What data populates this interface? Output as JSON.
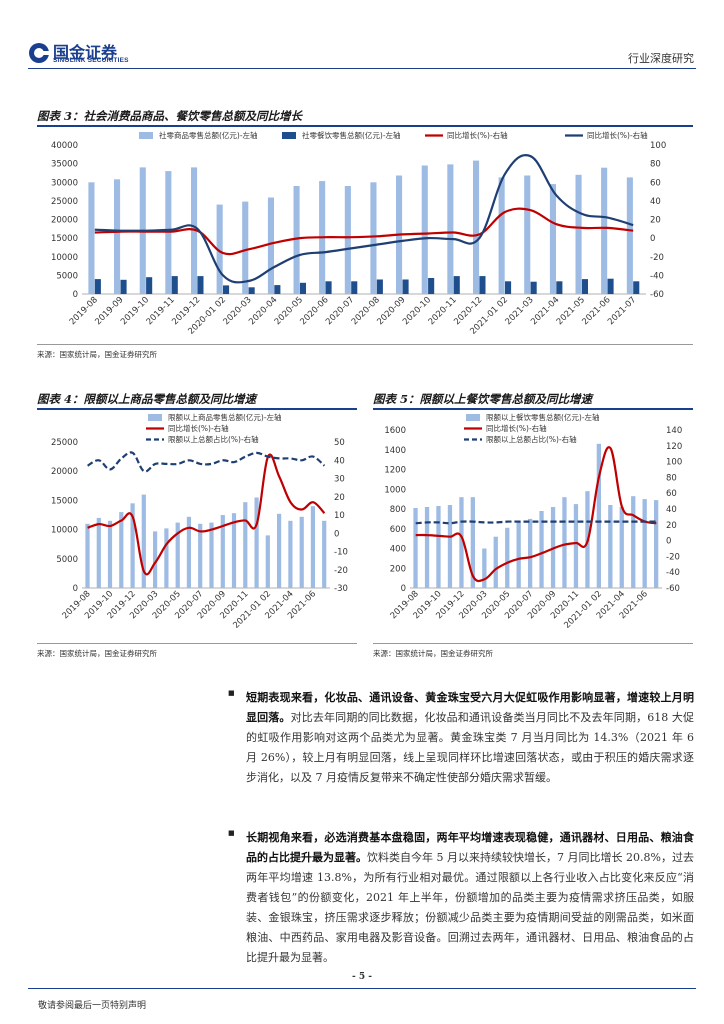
{
  "header": {
    "logo_cn": "国金证券",
    "logo_en": "SINOLINK SECURITIES",
    "doc_type": "行业深度研究"
  },
  "colors": {
    "bar_light": "#9dbbe3",
    "bar_dark": "#1f4e8c",
    "line_red": "#c00000",
    "line_navy": "#1f3f73",
    "brand": "#1a3f8f"
  },
  "chart_data": [
    {
      "id": "fig3",
      "type": "bar",
      "title": "图表 3：社会消费品商品、餐饮零售总额及同比增长",
      "source": "来源：国家统计局，国金证券研究所",
      "categories": [
        "2019-08",
        "2019-09",
        "2019-10",
        "2019-11",
        "2019-12",
        "2020-01 02",
        "2020-03",
        "2020-04",
        "2020-05",
        "2020-06",
        "2020-07",
        "2020-08",
        "2020-09",
        "2020-10",
        "2020-11",
        "2020-12",
        "2021-01 02",
        "2021-03",
        "2021-04",
        "2021-05",
        "2021-06",
        "2021-07"
      ],
      "ylim_left": [
        0,
        40000
      ],
      "yticks_left": [
        "0",
        "5000",
        "10000",
        "15000",
        "20000",
        "25000",
        "30000",
        "35000",
        "40000"
      ],
      "ylim_right": [
        -60,
        100
      ],
      "yticks_right": [
        "-60",
        "-40",
        "-20",
        "0",
        "20",
        "40",
        "60",
        "80",
        "100"
      ],
      "series": [
        {
          "name": "社零商品零售总额(亿元)-左轴",
          "kind": "bar",
          "axis": "left",
          "color": "#9dbbe3",
          "values": [
            30000,
            30800,
            34000,
            33000,
            34000,
            24000,
            24800,
            25900,
            29000,
            30300,
            29000,
            30000,
            31800,
            34500,
            34800,
            35800,
            31300,
            31800,
            29500,
            32000,
            33900,
            31300
          ]
        },
        {
          "name": "社零餐饮零售总额(亿元)-左轴",
          "kind": "bar",
          "axis": "left",
          "color": "#1f4e8c",
          "values": [
            4000,
            3800,
            4500,
            4800,
            4800,
            2300,
            1800,
            2400,
            3000,
            3400,
            3400,
            3900,
            3900,
            4300,
            4800,
            4800,
            3400,
            3300,
            3400,
            4000,
            4100,
            3400
          ]
        },
        {
          "name": "同比增长(%)-右轴",
          "kind": "line",
          "axis": "right",
          "color": "#c00000",
          "values": [
            6,
            7,
            7,
            7,
            8,
            -16,
            -12,
            -5,
            0,
            1,
            1,
            2,
            4,
            5,
            6,
            4,
            28,
            30,
            15,
            11,
            11,
            8
          ]
        },
        {
          "name": "同比增长(%)-右轴",
          "kind": "line",
          "axis": "right",
          "color": "#1f3f73",
          "values": [
            9,
            8,
            8,
            9,
            10,
            -40,
            -46,
            -31,
            -18,
            -15,
            -11,
            -7,
            -3,
            0,
            -1,
            0,
            69,
            88,
            46,
            26,
            22,
            14
          ]
        }
      ]
    },
    {
      "id": "fig4",
      "type": "bar",
      "title": "图表 4：限额以上商品零售总额及同比增速",
      "source": "来源：国家统计局，国金证券研究所",
      "categories": [
        "2019-08",
        "2019-09",
        "2019-10",
        "2019-11",
        "2019-12",
        "2020-01 02",
        "2020-03",
        "2020-04",
        "2020-05",
        "2020-06",
        "2020-07",
        "2020-08",
        "2020-09",
        "2020-10",
        "2020-11",
        "2020-12",
        "2021-01 02",
        "2021-03",
        "2021-04",
        "2021-05",
        "2021-06",
        "2021-07"
      ],
      "xtick_labels": [
        "2019-08",
        "2019-10",
        "2019-12",
        "2020-03",
        "2020-05",
        "2020-07",
        "2020-09",
        "2020-11",
        "2021-01 02",
        "2021-04",
        "2021-06"
      ],
      "ylim_left": [
        0,
        25000
      ],
      "yticks_left": [
        "0",
        "5000",
        "10000",
        "15000",
        "20000",
        "25000"
      ],
      "ylim_right": [
        -30,
        50
      ],
      "yticks_right": [
        "-30",
        "-20",
        "-10",
        "0",
        "10",
        "20",
        "30",
        "40",
        "50"
      ],
      "series": [
        {
          "name": "限额以上商品零售总额(亿元)-左轴",
          "kind": "bar",
          "axis": "left",
          "color": "#9dbbe3",
          "values": [
            11000,
            12000,
            11500,
            13000,
            14500,
            16000,
            9700,
            10200,
            11200,
            12200,
            11000,
            11200,
            12500,
            12800,
            14700,
            15500,
            9000,
            12700,
            11500,
            12200,
            14000,
            11500
          ]
        },
        {
          "name": "同比增长(%)-右轴",
          "kind": "line",
          "axis": "right",
          "color": "#c00000",
          "values": [
            3,
            5,
            4,
            7,
            9,
            -21,
            -16,
            -6,
            0,
            3,
            1,
            2,
            4,
            6,
            7,
            5,
            42,
            31,
            17,
            13,
            17,
            11
          ]
        },
        {
          "name": "限额以上总额占比(%)-右轴",
          "kind": "line",
          "axis": "right",
          "color": "#1f3f73",
          "dash": true,
          "values": [
            37,
            40,
            35,
            41,
            44,
            34,
            38,
            38,
            38,
            40,
            38,
            38,
            40,
            39,
            42,
            44,
            42,
            41,
            41,
            40,
            42,
            37
          ]
        }
      ]
    },
    {
      "id": "fig5",
      "type": "bar",
      "title": "图表 5：限额以上餐饮零售总额及同比增速",
      "source": "来源：国家统计局，国金证券研究所",
      "categories": [
        "2019-08",
        "2019-09",
        "2019-10",
        "2019-11",
        "2019-12",
        "2020-01 02",
        "2020-03",
        "2020-04",
        "2020-05",
        "2020-06",
        "2020-07",
        "2020-08",
        "2020-09",
        "2020-10",
        "2020-11",
        "2020-12",
        "2021-01 02",
        "2021-03",
        "2021-04",
        "2021-05",
        "2021-06",
        "2021-07"
      ],
      "xtick_labels": [
        "2019-08",
        "2019-10",
        "2019-12",
        "2020-03",
        "2020-05",
        "2020-07",
        "2020-09",
        "2020-11",
        "2021-01 02",
        "2021-04",
        "2021-06"
      ],
      "ylim_left": [
        0,
        1600
      ],
      "yticks_left": [
        "0",
        "200",
        "400",
        "600",
        "800",
        "1000",
        "1200",
        "1400",
        "1600"
      ],
      "ylim_right": [
        -60,
        140
      ],
      "yticks_right": [
        "-60",
        "-40",
        "-20",
        "0",
        "20",
        "40",
        "60",
        "80",
        "100",
        "120",
        "140"
      ],
      "series": [
        {
          "name": "限额以上餐饮零售总额(亿元)-左轴",
          "kind": "bar",
          "axis": "left",
          "color": "#9dbbe3",
          "values": [
            810,
            820,
            830,
            840,
            920,
            920,
            400,
            520,
            610,
            680,
            700,
            780,
            820,
            920,
            850,
            980,
            1460,
            840,
            820,
            930,
            900,
            890
          ]
        },
        {
          "name": "同比增长(%)-右轴",
          "kind": "line",
          "axis": "right",
          "color": "#c00000",
          "values": [
            7,
            7,
            6,
            5,
            5,
            -45,
            -49,
            -36,
            -28,
            -23,
            -21,
            -16,
            -10,
            -5,
            -3,
            -1,
            81,
            117,
            43,
            32,
            24,
            22
          ]
        },
        {
          "name": "限额以上总额占比(%)-右轴",
          "kind": "line",
          "axis": "right",
          "color": "#1f3f73",
          "dash": true,
          "values": [
            22,
            23,
            23,
            22,
            24,
            24,
            23,
            23,
            24,
            24,
            24,
            24,
            24,
            24,
            24,
            24,
            24,
            24,
            24,
            24,
            24,
            24
          ]
        }
      ]
    }
  ],
  "body": {
    "p1_lead": "短期表现来看，化妆品、通讯设备、黄金珠宝受六月大促虹吸作用影响显著，增速较上月明显回落。",
    "p1_lines": [
      "对比去年同期的同比数据，化妆品和通讯设备",
      "类当月同比不及去年同期，618 大促的虹吸作用影响对这两个品类尤为显",
      "著。黄金珠宝类 7 月当月同比为 14.3%（2021 年 6 月 26%），较上月有明",
      "显回落，线上呈现同样环比增速回落状态，或由于积压的婚庆需求逐步消",
      "化，以及 7 月疫情反复带来不确定性使部分婚庆需求暂缓。"
    ],
    "p2_lead": "长期视角来看，必选消费基本盘稳固，两年平均增速表现稳健，通讯器材、日用品、粮油食品的占比提升最为显著。",
    "p2_lines": [
      "饮料类自今年 5 月以来持续较快",
      "增长，7 月同比增长 20.8%，过去两年平均增速 13.8%，为所有行业相对",
      "最优。通过限额以上各行业收入占比变化来反应“消费者钱包”的份额变",
      "化，2021 年上半年，份额增加的品类主要为疫情需求挤压品类，如服装、",
      "金银珠宝，挤压需求逐步释放；份额减少品类主要为疫情期间受益的刚需",
      "品类，如米面粮油、中西药品、家用电器及影音设备。回溯过去两年，通",
      "讯器材、日用品、粮油食品的占比提升最为显著。"
    ]
  },
  "footer": {
    "page": "- 5 -",
    "disclaimer": "敬请参阅最后一页特别声明"
  }
}
